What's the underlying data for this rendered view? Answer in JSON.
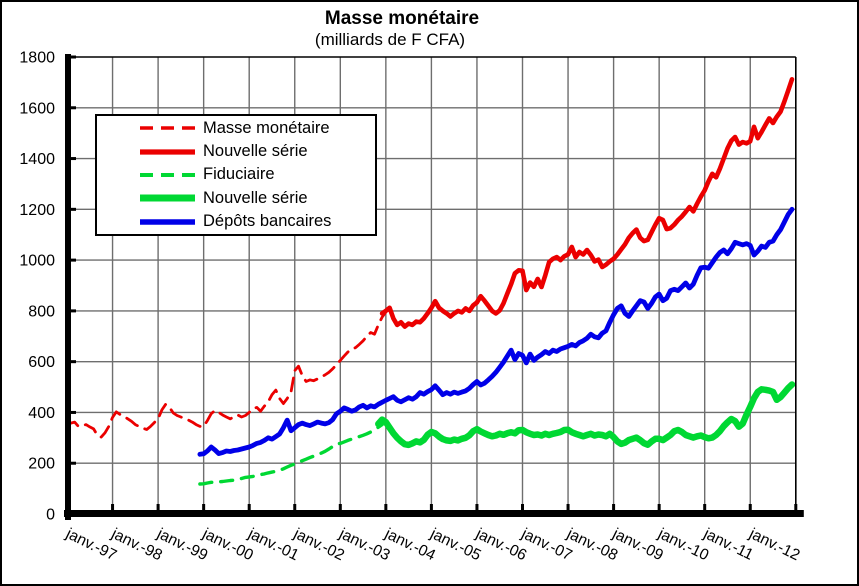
{
  "window": {
    "name": "Masse monétaire chart"
  },
  "chart_data": {
    "type": "line",
    "title": "Masse monétaire",
    "subtitle": "(milliards de F CFA)",
    "grid": true,
    "legend_position": "upper-left-inside",
    "x_axis": {
      "tick_labels": [
        "janv.-97",
        "janv.-98",
        "janv.-99",
        "janv.-00",
        "janv.-01",
        "janv.-02",
        "janv.-03",
        "janv.-04",
        "janv.-05",
        "janv.-06",
        "janv.-07",
        "janv.-08",
        "janv.-09",
        "janv.-10",
        "janv.-11",
        "janv.-12"
      ],
      "months_per_tick": 12
    },
    "y_axis": {
      "min": 0,
      "max": 1800,
      "tick_step": 200,
      "tick_labels": [
        "0",
        "200",
        "400",
        "600",
        "800",
        "1000",
        "1200",
        "1400",
        "1600",
        "1800"
      ]
    },
    "series": [
      {
        "name": "Masse monétaire",
        "color": "#EB0000",
        "style": "dashed",
        "thickness": 2.8,
        "dash": "13 8",
        "start_month_index": 0,
        "values": [
          350,
          358,
          362,
          345,
          348,
          352,
          343,
          335,
          310,
          303,
          320,
          345,
          380,
          402,
          392,
          385,
          375,
          365,
          352,
          345,
          338,
          333,
          345,
          360,
          375,
          410,
          432,
          420,
          398,
          388,
          382,
          375,
          370,
          362,
          352,
          345,
          345,
          368,
          395,
          408,
          400,
          390,
          382,
          375,
          382,
          390,
          382,
          388,
          400,
          415,
          420,
          405,
          425,
          442,
          470,
          488,
          455,
          435,
          455,
          480,
          565,
          582,
          545,
          522,
          528,
          525,
          532,
          540,
          548,
          558,
          572,
          588,
          605,
          622,
          638,
          650,
          655,
          668,
          682,
          700,
          715,
          708,
          745,
          775,
          795
        ]
      },
      {
        "name": "Nouvelle série",
        "color": "#EB0000",
        "style": "solid",
        "thickness": 4.6,
        "start_month_index": 83,
        "values": [
          790,
          800,
          812,
          770,
          745,
          755,
          738,
          750,
          745,
          758,
          755,
          770,
          790,
          812,
          838,
          812,
          800,
          790,
          778,
          790,
          800,
          794,
          810,
          800,
          822,
          833,
          858,
          840,
          820,
          800,
          790,
          802,
          830,
          868,
          905,
          948,
          960,
          958,
          882,
          912,
          895,
          926,
          894,
          940,
          992,
          1005,
          1012,
          1000,
          1015,
          1022,
          1052,
          1012,
          1032,
          1022,
          1040,
          1020,
          995,
          1002,
          973,
          982,
          995,
          1005,
          1022,
          1042,
          1062,
          1088,
          1106,
          1120,
          1088,
          1075,
          1080,
          1110,
          1140,
          1165,
          1158,
          1122,
          1126,
          1140,
          1158,
          1172,
          1190,
          1209,
          1192,
          1222,
          1250,
          1275,
          1310,
          1340,
          1326,
          1360,
          1400,
          1440,
          1470,
          1485,
          1455,
          1465,
          1460,
          1468,
          1525,
          1480,
          1505,
          1532,
          1558,
          1540,
          1565,
          1585,
          1625,
          1668,
          1712
        ]
      },
      {
        "name": "Fiduciaire",
        "color": "#00D833",
        "style": "dashed",
        "thickness": 3.4,
        "dash": "12 9",
        "start_month_index": 35,
        "values": [
          118,
          119,
          122,
          125,
          124,
          127,
          128,
          130,
          132,
          133,
          136,
          140,
          144,
          146,
          148,
          152,
          155,
          158,
          162,
          165,
          168,
          172,
          178,
          185,
          192,
          197,
          204,
          210,
          216,
          222,
          228,
          234,
          240,
          247,
          256,
          266,
          276,
          278,
          284,
          290,
          295,
          300,
          305,
          310,
          316,
          323,
          332,
          342,
          352
        ]
      },
      {
        "name": "Nouvelle série",
        "color": "#00D833",
        "style": "solid",
        "thickness": 6.5,
        "start_month_index": 82,
        "values": [
          355,
          372,
          362,
          340,
          318,
          300,
          286,
          275,
          272,
          278,
          286,
          282,
          292,
          312,
          323,
          318,
          305,
          295,
          290,
          288,
          293,
          290,
          296,
          300,
          310,
          326,
          334,
          325,
          318,
          311,
          306,
          309,
          316,
          312,
          318,
          322,
          318,
          330,
          331,
          322,
          316,
          311,
          313,
          309,
          316,
          311,
          316,
          319,
          323,
          331,
          332,
          322,
          316,
          311,
          306,
          311,
          316,
          309,
          313,
          311,
          306,
          316,
          303,
          286,
          276,
          281,
          291,
          296,
          301,
          291,
          279,
          273,
          286,
          296,
          296,
          291,
          301,
          311,
          326,
          331,
          323,
          311,
          306,
          301,
          306,
          309,
          303,
          298,
          301,
          311,
          326,
          346,
          361,
          374,
          366,
          344,
          356,
          391,
          422,
          456,
          481,
          491,
          489,
          486,
          481,
          450,
          461,
          478,
          496,
          510
        ]
      },
      {
        "name": "Dépôts bancaires",
        "color": "#0000E8",
        "style": "solid",
        "thickness": 4.8,
        "start_month_index": 35,
        "values": [
          235,
          237,
          248,
          264,
          252,
          238,
          242,
          248,
          246,
          250,
          252,
          256,
          260,
          264,
          270,
          278,
          282,
          290,
          300,
          295,
          305,
          315,
          340,
          370,
          328,
          340,
          352,
          358,
          352,
          348,
          355,
          362,
          358,
          355,
          360,
          372,
          395,
          405,
          418,
          412,
          405,
          410,
          422,
          428,
          418,
          426,
          422,
          432,
          440,
          448,
          455,
          462,
          448,
          442,
          450,
          458,
          452,
          462,
          478,
          472,
          482,
          490,
          505,
          488,
          470,
          478,
          472,
          480,
          475,
          480,
          485,
          495,
          510,
          522,
          508,
          515,
          528,
          542,
          558,
          578,
          598,
          622,
          645,
          608,
          632,
          625,
          595,
          630,
          605,
          618,
          628,
          640,
          632,
          645,
          640,
          650,
          655,
          660,
          668,
          662,
          675,
          682,
          692,
          708,
          698,
          694,
          712,
          722,
          755,
          785,
          810,
          820,
          790,
          778,
          800,
          820,
          840,
          835,
          810,
          830,
          855,
          866,
          840,
          850,
          880,
          885,
          880,
          895,
          910,
          890,
          905,
          940,
          970,
          972,
          968,
          990,
          1012,
          1030,
          1040,
          1025,
          1045,
          1070,
          1065,
          1060,
          1065,
          1058,
          1020,
          1035,
          1055,
          1050,
          1070,
          1075,
          1100,
          1120,
          1150,
          1180,
          1200
        ]
      }
    ],
    "colors": {
      "grid": "#6e6e6e",
      "axis": "#000000",
      "background": "#ffffff"
    }
  }
}
